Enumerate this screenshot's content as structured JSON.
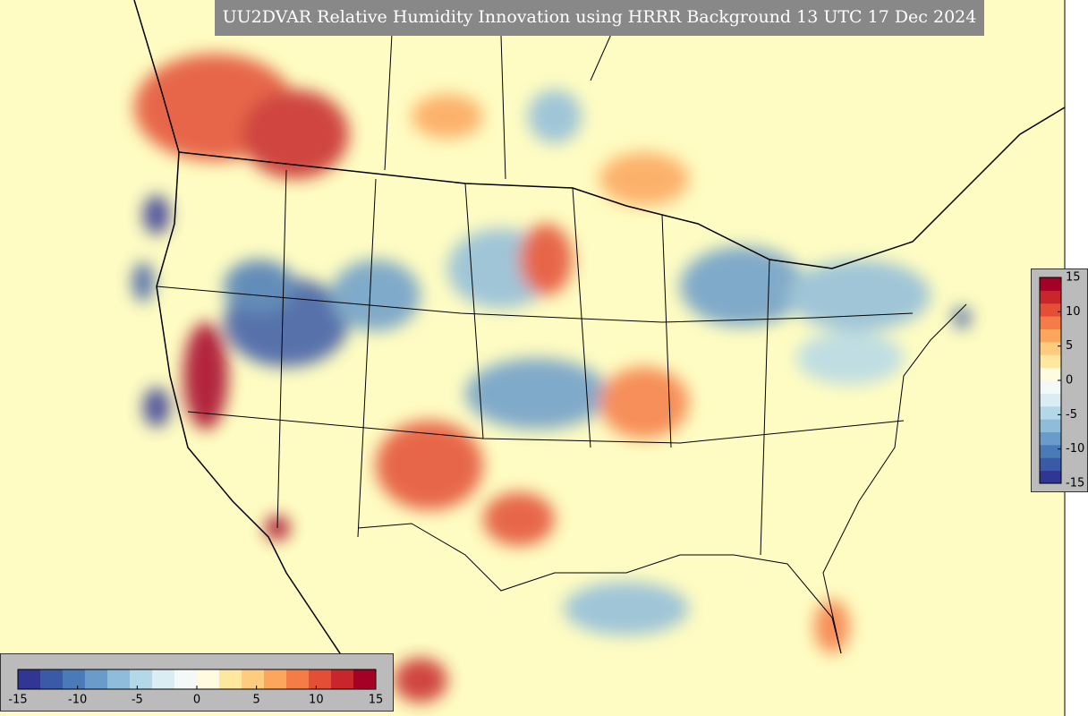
{
  "title": "UU2DVAR Relative Humidity Innovation using HRRR Background 13 UTC 17 Dec 2024",
  "range": [
    -15,
    15
  ],
  "colors": [
    "#313695",
    "#3a5aa8",
    "#4a7ab8",
    "#6a9ccb",
    "#8fbcdb",
    "#b5d8e8",
    "#d9edf3",
    "#f2f9f6",
    "#fffbe0",
    "#fee8a0",
    "#fdcc7f",
    "#fca55d",
    "#f57c46",
    "#e34e34",
    "#c8262a",
    "#a50026"
  ],
  "colorbars": [
    {
      "orientation": "horizontal",
      "ticks": [
        -15,
        -10,
        -5,
        0,
        5,
        10,
        15
      ]
    },
    {
      "orientation": "vertical",
      "ticks": [
        15,
        10,
        5,
        0,
        -5,
        -10,
        -15
      ]
    }
  ]
}
